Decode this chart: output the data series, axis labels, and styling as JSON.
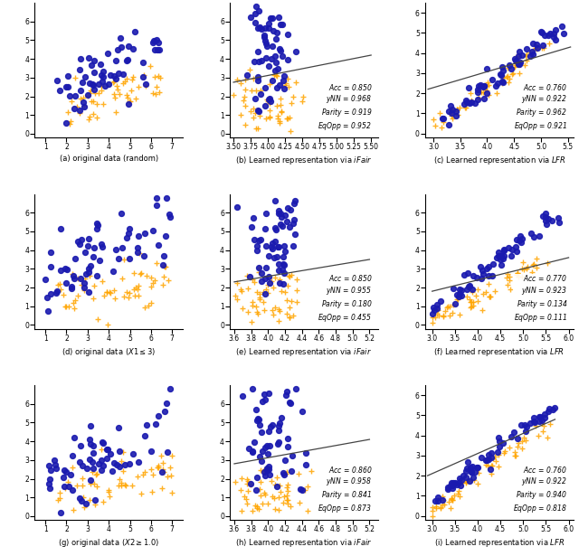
{
  "subplots": [
    {
      "idx": 0,
      "label": "(a) original data (random)",
      "type": "orig",
      "xlim": [
        0.5,
        7.5
      ],
      "ylim": [
        -0.2,
        7.0
      ],
      "xticks": [
        1,
        2,
        3,
        4,
        5,
        6,
        7
      ],
      "yticks": [
        0,
        1,
        2,
        3,
        4,
        5,
        6
      ]
    },
    {
      "idx": 1,
      "label": "(b) Learned representation via iFair",
      "type": "ifair",
      "stats": {
        "Acc": 0.85,
        "yNN": 0.968,
        "Parity": 0.919,
        "EqOpp": 0.952
      },
      "xlim": [
        3.45,
        5.6
      ],
      "ylim": [
        -0.2,
        7.0
      ],
      "xticks": [
        3.5,
        3.75,
        4.0,
        4.25,
        4.5,
        4.75,
        5.0,
        5.25,
        5.5
      ],
      "yticks": [
        0,
        1,
        2,
        3,
        4,
        5,
        6
      ],
      "line_x": [
        3.5,
        5.5
      ],
      "line_y": [
        2.75,
        4.2
      ]
    },
    {
      "idx": 2,
      "label": "(c) Learned representation via LFR",
      "type": "lfr",
      "stats": {
        "Acc": 0.76,
        "yNN": 0.922,
        "Parity": 0.962,
        "EqOpp": 0.921
      },
      "xlim": [
        2.85,
        5.6
      ],
      "ylim": [
        -0.2,
        6.5
      ],
      "xticks": [
        3.0,
        3.5,
        4.0,
        4.5,
        5.0,
        5.5
      ],
      "yticks": [
        0,
        1,
        2,
        3,
        4,
        5,
        6
      ],
      "line_x": [
        2.9,
        5.55
      ],
      "line_y": [
        2.2,
        4.3
      ]
    },
    {
      "idx": 3,
      "label": "(d) original data (X1<=3)",
      "type": "orig",
      "xlim": [
        0.5,
        7.5
      ],
      "ylim": [
        -0.2,
        7.0
      ],
      "xticks": [
        1,
        2,
        3,
        4,
        5,
        6,
        7
      ],
      "yticks": [
        0,
        1,
        2,
        3,
        4,
        5,
        6
      ]
    },
    {
      "idx": 4,
      "label": "(e) Learned representation via iFair",
      "type": "ifair",
      "stats": {
        "Acc": 0.85,
        "yNN": 0.955,
        "Parity": 0.18,
        "EqOpp": 0.455
      },
      "xlim": [
        3.55,
        5.3
      ],
      "ylim": [
        -0.2,
        7.0
      ],
      "xticks": [
        3.6,
        3.8,
        4.0,
        4.2,
        4.4,
        4.6,
        4.8,
        5.0,
        5.2
      ],
      "yticks": [
        0,
        1,
        2,
        3,
        4,
        5,
        6
      ],
      "line_x": [
        3.6,
        5.2
      ],
      "line_y": [
        2.3,
        3.5
      ]
    },
    {
      "idx": 5,
      "label": "(f) Learned representation via LFR",
      "type": "lfr",
      "stats": {
        "Acc": 0.77,
        "yNN": 0.923,
        "Parity": 0.134,
        "EqOpp": 0.111
      },
      "xlim": [
        2.85,
        6.1
      ],
      "ylim": [
        -0.2,
        7.0
      ],
      "xticks": [
        3.0,
        3.5,
        4.0,
        4.5,
        5.0,
        5.5,
        6.0
      ],
      "yticks": [
        0,
        1,
        2,
        3,
        4,
        5,
        6
      ],
      "line_x": [
        3.0,
        6.0
      ],
      "line_y": [
        1.8,
        3.6
      ]
    },
    {
      "idx": 6,
      "label": "(g) original data (X2>=1.0)",
      "type": "orig",
      "xlim": [
        0.5,
        7.5
      ],
      "ylim": [
        -0.2,
        7.0
      ],
      "xticks": [
        1,
        2,
        3,
        4,
        5,
        6,
        7
      ],
      "yticks": [
        0,
        1,
        2,
        3,
        4,
        5,
        6
      ]
    },
    {
      "idx": 7,
      "label": "(h) Learned representation via iFair",
      "type": "ifair",
      "stats": {
        "Acc": 0.86,
        "yNN": 0.958,
        "Parity": 0.841,
        "EqOpp": 0.873
      },
      "xlim": [
        3.55,
        5.3
      ],
      "ylim": [
        -0.2,
        7.0
      ],
      "xticks": [
        3.6,
        3.8,
        4.0,
        4.2,
        4.4,
        4.6,
        4.8,
        5.0,
        5.2
      ],
      "yticks": [
        0,
        1,
        2,
        3,
        4,
        5,
        6
      ],
      "line_x": [
        3.6,
        5.2
      ],
      "line_y": [
        2.8,
        4.1
      ]
    },
    {
      "idx": 8,
      "label": "(i) Learned representation via LFR",
      "type": "lfr",
      "stats": {
        "Acc": 0.76,
        "yNN": 0.922,
        "Parity": 0.94,
        "EqOpp": 0.818
      },
      "xlim": [
        2.85,
        6.1
      ],
      "ylim": [
        -0.2,
        6.5
      ],
      "xticks": [
        3.0,
        3.5,
        4.0,
        4.5,
        5.0,
        5.5,
        6.0
      ],
      "yticks": [
        0,
        1,
        2,
        3,
        4,
        5,
        6
      ],
      "line_x": [
        2.9,
        5.7
      ],
      "line_y": [
        2.0,
        4.8
      ]
    }
  ],
  "blue_color": "#1a1aaf",
  "orange_color": "#FFA500",
  "line_color": "#444444",
  "dot_size": 18,
  "cross_size": 25,
  "dot_alpha": 0.9,
  "cross_alpha": 0.85,
  "cross_lw": 1.0
}
